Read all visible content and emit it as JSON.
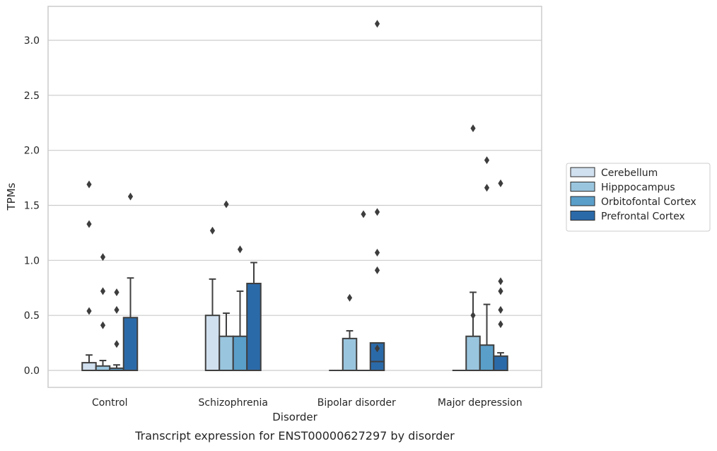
{
  "chart_data": {
    "type": "box",
    "title": "Transcript expression for ENST00000627297 by disorder",
    "xlabel": "Disorder",
    "ylabel": "TPMs",
    "categories": [
      "Control",
      "Schizophrenia",
      "Bipolar disorder",
      "Major depression"
    ],
    "ylim": [
      -0.15,
      3.32
    ],
    "yticks": [
      0.0,
      0.5,
      1.0,
      1.5,
      2.0,
      2.5,
      3.0
    ],
    "ytick_labels": [
      "0.0",
      "0.5",
      "1.0",
      "1.5",
      "2.0",
      "2.5",
      "3.0"
    ],
    "grid": "horizontal",
    "legend_position": "right",
    "series": [
      {
        "name": "Cerebellum",
        "color": "#d1e0ef",
        "boxes": [
          {
            "q1": 0.0,
            "median": 0.0,
            "q3": 0.07,
            "whisker_low": 0.0,
            "whisker_high": 0.14,
            "outliers": [
              1.69,
              1.33,
              0.54
            ]
          },
          {
            "q1": 0.0,
            "median": 0.0,
            "q3": 0.5,
            "whisker_low": 0.0,
            "whisker_high": 0.83,
            "outliers": [
              1.27
            ]
          },
          {
            "q1": 0.0,
            "median": 0.0,
            "q3": 0.0,
            "whisker_low": 0.0,
            "whisker_high": 0.0,
            "outliers": []
          },
          {
            "q1": 0.0,
            "median": 0.0,
            "q3": 0.0,
            "whisker_low": 0.0,
            "whisker_high": 0.0,
            "outliers": []
          }
        ]
      },
      {
        "name": "Hipppocampus",
        "color": "#9ac5de",
        "boxes": [
          {
            "q1": 0.0,
            "median": 0.0,
            "q3": 0.04,
            "whisker_low": 0.0,
            "whisker_high": 0.09,
            "outliers": [
              1.03,
              0.72,
              0.41
            ]
          },
          {
            "q1": 0.0,
            "median": 0.0,
            "q3": 0.31,
            "whisker_low": 0.0,
            "whisker_high": 0.52,
            "outliers": [
              1.51
            ]
          },
          {
            "q1": 0.0,
            "median": 0.0,
            "q3": 0.29,
            "whisker_low": 0.0,
            "whisker_high": 0.36,
            "outliers": [
              0.66
            ]
          },
          {
            "q1": 0.0,
            "median": 0.0,
            "q3": 0.31,
            "whisker_low": 0.0,
            "whisker_high": 0.71,
            "outliers": [
              2.2,
              0.5
            ]
          }
        ]
      },
      {
        "name": "Orbitofontal Cortex",
        "color": "#5a9fca",
        "boxes": [
          {
            "q1": 0.0,
            "median": 0.0,
            "q3": 0.02,
            "whisker_low": 0.0,
            "whisker_high": 0.05,
            "outliers": [
              0.71,
              0.55,
              0.24
            ]
          },
          {
            "q1": 0.0,
            "median": 0.0,
            "q3": 0.31,
            "whisker_low": 0.0,
            "whisker_high": 0.72,
            "outliers": [
              1.1
            ]
          },
          {
            "q1": 0.0,
            "median": 0.0,
            "q3": 0.0,
            "whisker_low": 0.0,
            "whisker_high": 0.0,
            "outliers": [
              1.42
            ]
          },
          {
            "q1": 0.0,
            "median": 0.0,
            "q3": 0.23,
            "whisker_low": 0.0,
            "whisker_high": 0.6,
            "outliers": [
              1.91,
              1.66
            ]
          }
        ]
      },
      {
        "name": "Prefrontal Cortex",
        "color": "#2b6aa9",
        "boxes": [
          {
            "q1": 0.0,
            "median": 0.0,
            "q3": 0.48,
            "whisker_low": 0.0,
            "whisker_high": 0.84,
            "outliers": [
              1.58
            ]
          },
          {
            "q1": 0.0,
            "median": 0.0,
            "q3": 0.79,
            "whisker_low": 0.0,
            "whisker_high": 0.98,
            "outliers": []
          },
          {
            "q1": 0.0,
            "median": 0.08,
            "q3": 0.25,
            "whisker_low": 0.0,
            "whisker_high": 0.25,
            "outliers": [
              0.2,
              1.44,
              3.15,
              1.07,
              0.91
            ]
          },
          {
            "q1": 0.0,
            "median": 0.0,
            "q3": 0.13,
            "whisker_low": 0.0,
            "whisker_high": 0.16,
            "outliers": [
              0.81,
              0.72,
              1.7,
              0.55,
              0.42
            ]
          }
        ]
      }
    ]
  }
}
